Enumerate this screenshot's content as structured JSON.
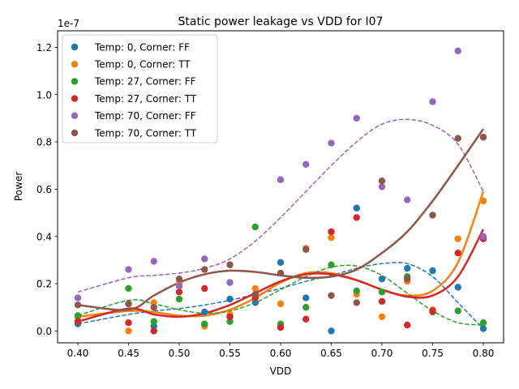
{
  "chart_data": {
    "type": "scatter",
    "title": "Static power leakage vs VDD for I07",
    "xlabel": "VDD",
    "ylabel": "Power",
    "y_offset_label": "1e-7",
    "y_scale": 1e-07,
    "xlim": [
      0.38,
      0.82
    ],
    "ylim": [
      -0.05,
      1.27
    ],
    "x_ticks": [
      0.4,
      0.45,
      0.5,
      0.55,
      0.6,
      0.65,
      0.7,
      0.75,
      0.8
    ],
    "x_tick_labels": [
      "0.40",
      "0.45",
      "0.50",
      "0.55",
      "0.60",
      "0.65",
      "0.70",
      "0.75",
      "0.80"
    ],
    "y_ticks": [
      0.0,
      0.2,
      0.4,
      0.6,
      0.8,
      1.0,
      1.2
    ],
    "y_tick_labels": [
      "0.0",
      "0.2",
      "0.4",
      "0.6",
      "0.8",
      "1.0",
      "1.2"
    ],
    "grid": false,
    "legend_position": "upper-left",
    "x": [
      0.4,
      0.45,
      0.475,
      0.5,
      0.525,
      0.55,
      0.575,
      0.6,
      0.625,
      0.65,
      0.675,
      0.7,
      0.725,
      0.75,
      0.775,
      0.8
    ],
    "series": [
      {
        "name": "Temp: 0, Corner: FF",
        "color": "#1f77b4",
        "fit_style": "dashed",
        "values": [
          0.03,
          0.115,
          0.02,
          0.19,
          0.08,
          0.135,
          0.12,
          0.29,
          0.14,
          0.0,
          0.52,
          0.22,
          0.265,
          0.255,
          0.185,
          0.01
        ],
        "fit": [
          0.03,
          0.07,
          0.085,
          0.095,
          0.11,
          0.13,
          0.155,
          0.18,
          0.21,
          0.235,
          0.265,
          0.285,
          0.285,
          0.23,
          0.12,
          0.01
        ]
      },
      {
        "name": "Temp: 0, Corner: TT",
        "color": "#ff7f0e",
        "fit_style": "solid",
        "values": [
          0.06,
          0.0,
          0.12,
          0.2,
          0.02,
          0.07,
          0.18,
          0.115,
          0.35,
          0.395,
          0.155,
          0.06,
          0.21,
          0.09,
          0.39,
          0.55
        ],
        "fit": [
          0.06,
          0.085,
          0.08,
          0.065,
          0.065,
          0.09,
          0.14,
          0.205,
          0.245,
          0.245,
          0.215,
          0.175,
          0.15,
          0.17,
          0.29,
          0.59
        ]
      },
      {
        "name": "Temp: 27, Corner: FF",
        "color": "#2ca02c",
        "fit_style": "dashed",
        "values": [
          0.065,
          0.18,
          0.04,
          0.135,
          0.03,
          0.04,
          0.44,
          0.03,
          0.1,
          0.28,
          0.17,
          0.165,
          0.23,
          0.08,
          0.085,
          0.035
        ],
        "fit": [
          0.065,
          0.13,
          0.115,
          0.09,
          0.075,
          0.085,
          0.12,
          0.175,
          0.23,
          0.27,
          0.275,
          0.235,
          0.16,
          0.085,
          0.035,
          0.025
        ]
      },
      {
        "name": "Temp: 27, Corner: TT",
        "color": "#d62728",
        "fit_style": "solid",
        "values": [
          0.04,
          0.035,
          0.0,
          0.165,
          0.18,
          0.06,
          0.14,
          0.015,
          0.05,
          0.42,
          0.48,
          0.125,
          0.025,
          0.085,
          0.33,
          0.39
        ],
        "fit": [
          0.04,
          0.095,
          0.07,
          0.06,
          0.075,
          0.11,
          0.16,
          0.21,
          0.24,
          0.24,
          0.215,
          0.175,
          0.145,
          0.15,
          0.23,
          0.43
        ]
      },
      {
        "name": "Temp: 70, Corner: FF",
        "color": "#9467bd",
        "fit_style": "dashed",
        "values": [
          0.14,
          0.26,
          0.295,
          0.19,
          0.305,
          0.205,
          0.155,
          0.64,
          0.705,
          0.795,
          0.9,
          0.61,
          0.555,
          0.97,
          1.185,
          0.4
        ],
        "fit": [
          0.165,
          0.225,
          0.235,
          0.245,
          0.265,
          0.305,
          0.38,
          0.48,
          0.59,
          0.7,
          0.8,
          0.875,
          0.895,
          0.87,
          0.79,
          0.59
        ]
      },
      {
        "name": "Temp: 70, Corner: TT",
        "color": "#8c564b",
        "fit_style": "solid",
        "values": [
          0.11,
          0.115,
          0.1,
          0.22,
          0.26,
          0.28,
          0.155,
          0.245,
          0.345,
          0.15,
          0.12,
          0.635,
          0.22,
          0.49,
          0.815,
          0.82
        ],
        "fit": [
          0.11,
          0.09,
          0.15,
          0.205,
          0.24,
          0.255,
          0.25,
          0.235,
          0.225,
          0.23,
          0.26,
          0.33,
          0.42,
          0.55,
          0.7,
          0.855
        ]
      }
    ]
  }
}
